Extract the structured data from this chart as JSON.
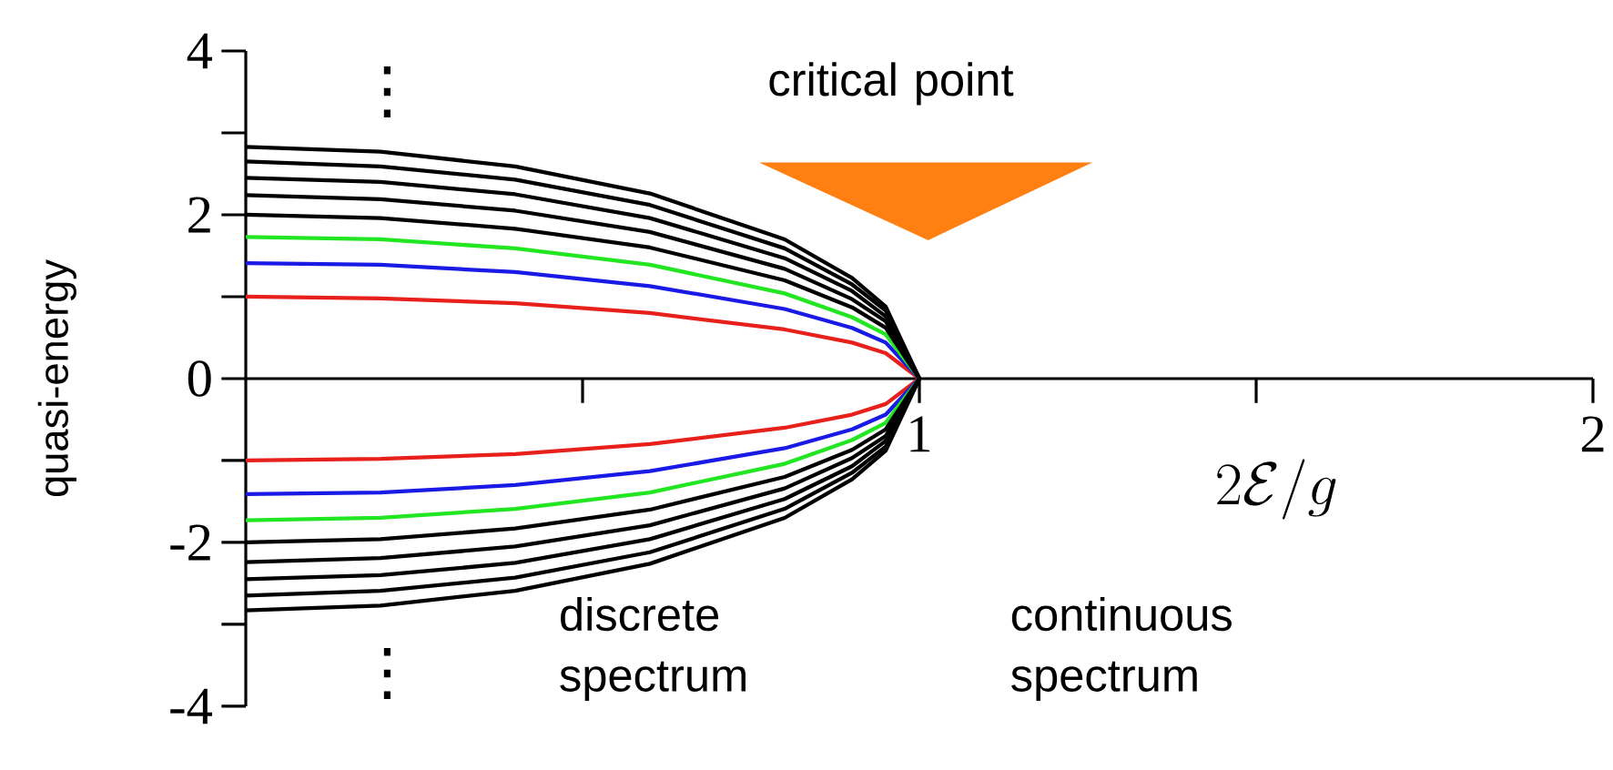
{
  "chart_data": {
    "type": "line",
    "xlabel": "2\\mathcal{E}/g",
    "ylabel": "quasi-energy",
    "x": [
      0,
      0.2,
      0.4,
      0.6,
      0.8,
      0.9,
      0.95,
      1
    ],
    "series": [
      {
        "color": "#e8201c",
        "values": [
          1,
          0.98,
          0.92,
          0.8,
          0.6,
          0.44,
          0.31,
          0
        ]
      },
      {
        "color": "#1a1ae6",
        "values": [
          1.41,
          1.39,
          1.3,
          1.13,
          0.85,
          0.62,
          0.44,
          0
        ]
      },
      {
        "color": "#22e622",
        "values": [
          1.73,
          1.7,
          1.59,
          1.39,
          1.04,
          0.75,
          0.54,
          0
        ]
      },
      {
        "color": "#000000",
        "values": [
          2,
          1.96,
          1.83,
          1.6,
          1.2,
          0.87,
          0.62,
          0
        ]
      },
      {
        "color": "#000000",
        "values": [
          2.24,
          2.19,
          2.05,
          1.79,
          1.34,
          0.97,
          0.7,
          0
        ]
      },
      {
        "color": "#000000",
        "values": [
          2.45,
          2.4,
          2.25,
          1.96,
          1.47,
          1.07,
          0.76,
          0
        ]
      },
      {
        "color": "#000000",
        "values": [
          2.65,
          2.59,
          2.43,
          2.12,
          1.59,
          1.15,
          0.83,
          0
        ]
      },
      {
        "color": "#000000",
        "values": [
          2.83,
          2.77,
          2.59,
          2.26,
          1.7,
          1.23,
          0.88,
          0
        ]
      },
      {
        "color": "#e8201c",
        "values": [
          -1,
          -0.98,
          -0.92,
          -0.8,
          -0.6,
          -0.44,
          -0.31,
          0
        ]
      },
      {
        "color": "#1a1ae6",
        "values": [
          -1.41,
          -1.39,
          -1.3,
          -1.13,
          -0.85,
          -0.62,
          -0.44,
          0
        ]
      },
      {
        "color": "#22e622",
        "values": [
          -1.73,
          -1.7,
          -1.59,
          -1.39,
          -1.04,
          -0.75,
          -0.54,
          0
        ]
      },
      {
        "color": "#000000",
        "values": [
          -2,
          -1.96,
          -1.83,
          -1.6,
          -1.2,
          -0.87,
          -0.62,
          0
        ]
      },
      {
        "color": "#000000",
        "values": [
          -2.24,
          -2.19,
          -2.05,
          -1.79,
          -1.34,
          -0.97,
          -0.7,
          0
        ]
      },
      {
        "color": "#000000",
        "values": [
          -2.45,
          -2.4,
          -2.25,
          -1.96,
          -1.47,
          -1.07,
          -0.76,
          0
        ]
      },
      {
        "color": "#000000",
        "values": [
          -2.65,
          -2.59,
          -2.43,
          -2.12,
          -1.59,
          -1.15,
          -0.83,
          0
        ]
      },
      {
        "color": "#000000",
        "values": [
          -2.83,
          -2.77,
          -2.59,
          -2.26,
          -1.7,
          -1.23,
          -0.88,
          0
        ]
      }
    ],
    "xlim": [
      0,
      2
    ],
    "ylim": [
      -4,
      4
    ],
    "xticks": [
      {
        "value": 0.5,
        "label": null
      },
      1,
      {
        "value": 1.5,
        "label": null
      },
      2
    ],
    "yticks": [
      -4,
      {
        "value": -3,
        "label": null
      },
      -2,
      {
        "value": -1,
        "label": null
      },
      0,
      {
        "value": 1,
        "label": null
      },
      2,
      {
        "value": 3,
        "label": null
      },
      4
    ],
    "annotations": [
      "critical point",
      "discrete spectrum",
      "continuous spectrum",
      "⋮",
      "⋮"
    ],
    "grid": false,
    "marker": "none",
    "line_style": "solid"
  }
}
